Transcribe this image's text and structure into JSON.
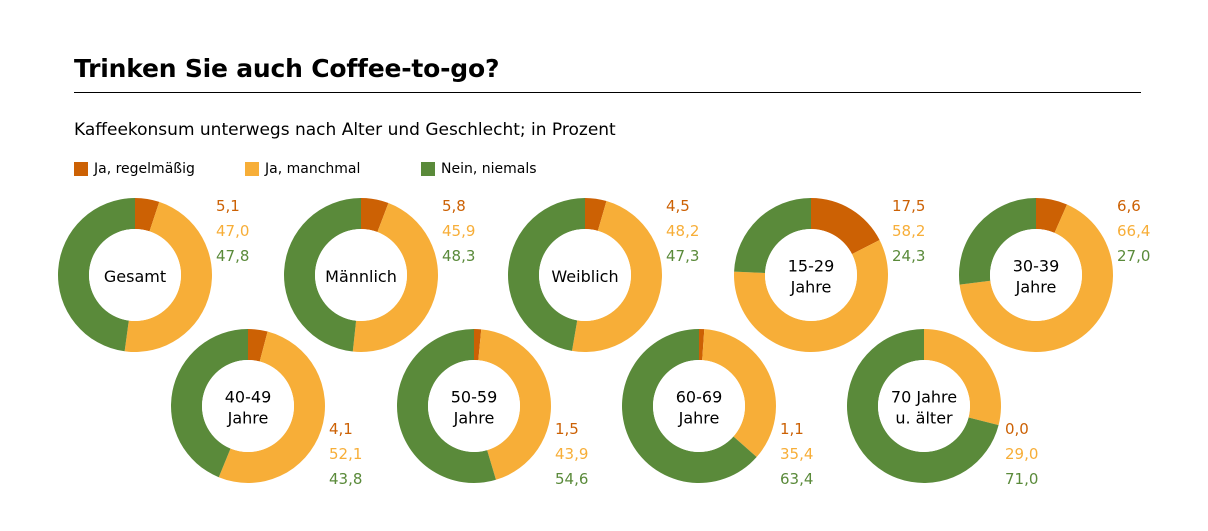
{
  "title": "Trinken Sie auch Coffee-to-go?",
  "chart_data": {
    "type": "pie",
    "variant": "donut",
    "title": "Trinken Sie auch Coffee-to-go?",
    "subtitle": "Kaffeekonsum unterwegs nach Alter und Geschlecht; in Prozent",
    "series_names": [
      "Ja, regelmäßig",
      "Ja, manchmal",
      "Nein, niemals"
    ],
    "colors": [
      "#cc6104",
      "#f7ae38",
      "#5a8a3a"
    ],
    "groups": [
      {
        "label": [
          "Gesamt"
        ],
        "values": [
          5.1,
          47.0,
          47.8
        ],
        "labels": [
          "5,1",
          "47,0",
          "47,8"
        ]
      },
      {
        "label": [
          "Männlich"
        ],
        "values": [
          5.8,
          45.9,
          48.3
        ],
        "labels": [
          "5,8",
          "45,9",
          "48,3"
        ]
      },
      {
        "label": [
          "Weiblich"
        ],
        "values": [
          4.5,
          48.2,
          47.3
        ],
        "labels": [
          "4,5",
          "48,2",
          "47,3"
        ]
      },
      {
        "label": [
          "15-29",
          "Jahre"
        ],
        "values": [
          17.5,
          58.2,
          24.3
        ],
        "labels": [
          "17,5",
          "58,2",
          "24,3"
        ]
      },
      {
        "label": [
          "30-39",
          "Jahre"
        ],
        "values": [
          6.6,
          66.4,
          27.0
        ],
        "labels": [
          "6,6",
          "66,4",
          "27,0"
        ]
      },
      {
        "label": [
          "40-49",
          "Jahre"
        ],
        "values": [
          4.1,
          52.1,
          43.8
        ],
        "labels": [
          "4,1",
          "52,1",
          "43,8"
        ]
      },
      {
        "label": [
          "50-59",
          "Jahre"
        ],
        "values": [
          1.5,
          43.9,
          54.6
        ],
        "labels": [
          "1,5",
          "43,9",
          "54,6"
        ]
      },
      {
        "label": [
          "60-69",
          "Jahre"
        ],
        "values": [
          1.1,
          35.4,
          63.4
        ],
        "labels": [
          "1,1",
          "35,4",
          "63,4"
        ]
      },
      {
        "label": [
          "70 Jahre",
          "u. älter"
        ],
        "values": [
          0.0,
          29.0,
          71.0
        ],
        "labels": [
          "0,0",
          "29,0",
          "71,0"
        ]
      }
    ]
  }
}
